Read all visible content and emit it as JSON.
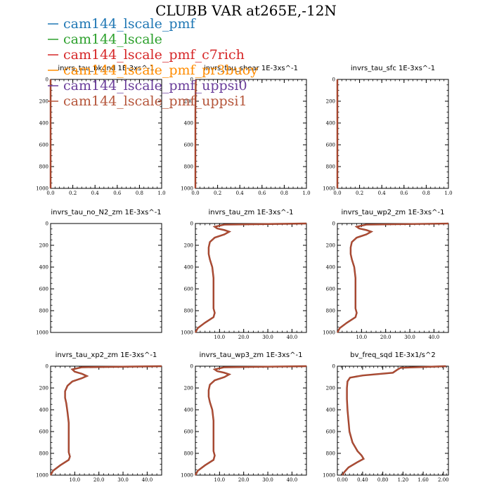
{
  "figure": {
    "title": "CLUBB VAR at265E,-12N"
  },
  "legend": [
    {
      "label": "cam144_lscale_pmf",
      "color": "#1f77b4"
    },
    {
      "label": "cam144_lscale",
      "color": "#2ca02c"
    },
    {
      "label": "cam144_lscale_pmf_c7rich",
      "color": "#d62728"
    },
    {
      "label": "cam144_lscale_pmf_pr3buoy",
      "color": "#ff8c00"
    },
    {
      "label": "cam144_lscale_pmf_uppsi0",
      "color": "#6a3d9a"
    },
    {
      "label": "cam144_lscale_pmf_uppsi1",
      "color": "#b5553a"
    }
  ],
  "chart_data": [
    {
      "type": "line",
      "title": "invrs_tau_bkgnd   1E-3xs^-1",
      "xlim": [
        0,
        1
      ],
      "ylim": [
        1000,
        0
      ],
      "xticks": [
        "0.0",
        "0.2",
        "0.4",
        "0.6",
        "0.8",
        "1.0"
      ],
      "yticks": [
        "0",
        "200",
        "400",
        "600",
        "800",
        "1000"
      ],
      "series": [
        {
          "x": [
            0,
            0,
            0,
            0,
            0,
            0,
            0,
            0
          ],
          "y": [
            0,
            15,
            150,
            300,
            500,
            700,
            900,
            1000
          ]
        }
      ]
    },
    {
      "type": "line",
      "title": "invrs_tau_shear   1E-3xs^-1",
      "xlim": [
        0,
        1
      ],
      "ylim": [
        1000,
        0
      ],
      "xticks": [
        "0.0",
        "0.2",
        "0.4",
        "0.6",
        "0.8",
        "1.0"
      ],
      "yticks": [
        "0",
        "200",
        "400",
        "600",
        "800",
        "1000"
      ],
      "series": [
        {
          "x": [
            0.006,
            0.003,
            0.001,
            0.0,
            0.0,
            0.0,
            0.0,
            0.0
          ],
          "y": [
            0,
            15,
            150,
            300,
            500,
            700,
            900,
            1000
          ]
        }
      ]
    },
    {
      "type": "line",
      "title": "invrs_tau_sfc   1E-3xs^-1",
      "xlim": [
        0,
        1
      ],
      "ylim": [
        1000,
        0
      ],
      "xticks": [
        "0.0",
        "0.2",
        "0.4",
        "0.6",
        "0.8",
        "1.0"
      ],
      "yticks": [
        "0",
        "200",
        "400",
        "600",
        "800",
        "1000"
      ],
      "series": [
        {
          "x": [
            0,
            0,
            0,
            0,
            0,
            0,
            0,
            0
          ],
          "y": [
            0,
            15,
            150,
            300,
            500,
            700,
            900,
            1000
          ]
        }
      ]
    },
    {
      "type": "line",
      "title": "invrs_tau_no_N2_zm   1E-3xs^-1",
      "xlim": [
        0,
        1
      ],
      "ylim": [
        1000,
        0
      ],
      "xticks": [],
      "yticks": [
        "0",
        "200",
        "400",
        "600",
        "800",
        "1000"
      ],
      "series": []
    },
    {
      "type": "line",
      "title": "invrs_tau_zm   1E-3xs^-1",
      "xlim": [
        0,
        46
      ],
      "ylim": [
        1000,
        0
      ],
      "xticks": [
        "10.0",
        "20.0",
        "30.0",
        "40.0"
      ],
      "yticks": [
        "0",
        "200",
        "400",
        "600",
        "800",
        "1000"
      ],
      "series": [
        {
          "x": [
            46,
            12,
            8,
            9,
            12,
            14,
            12,
            8,
            6,
            5.5,
            5.5,
            6,
            7,
            7.5,
            7.5,
            7.5,
            7.5,
            8,
            7.5,
            4,
            1,
            0
          ],
          "y": [
            0,
            10,
            30,
            45,
            60,
            75,
            100,
            130,
            170,
            220,
            280,
            330,
            400,
            500,
            600,
            700,
            780,
            820,
            860,
            910,
            960,
            1000
          ]
        }
      ]
    },
    {
      "type": "line",
      "title": "invrs_tau_wp2_zm   1E-3xs^-1",
      "xlim": [
        0,
        46
      ],
      "ylim": [
        1000,
        0
      ],
      "xticks": [
        "10.0",
        "20.0",
        "30.0",
        "40.0"
      ],
      "yticks": [
        "0",
        "200",
        "400",
        "600",
        "800",
        "1000"
      ],
      "series": [
        {
          "x": [
            46,
            12,
            8,
            9,
            12,
            14,
            12,
            8,
            6,
            5.5,
            5.5,
            6,
            7,
            7.5,
            7.5,
            7.5,
            7.5,
            8,
            7.5,
            4,
            1,
            0
          ],
          "y": [
            0,
            10,
            30,
            45,
            60,
            75,
            100,
            130,
            170,
            220,
            280,
            330,
            400,
            500,
            600,
            700,
            780,
            820,
            860,
            910,
            960,
            1000
          ]
        }
      ]
    },
    {
      "type": "line",
      "title": "invrs_tau_xp2_zm   1E-3xs^-1",
      "xlim": [
        0,
        46
      ],
      "ylim": [
        1000,
        0
      ],
      "xticks": [
        "10.0",
        "20.0",
        "30.0",
        "40.0"
      ],
      "yticks": [
        "0",
        "200",
        "400",
        "600",
        "800",
        "1000"
      ],
      "series": [
        {
          "x": [
            46,
            13,
            9,
            10,
            13,
            15,
            13,
            9,
            7,
            6,
            6,
            6.5,
            7,
            7.5,
            7.5,
            7.5,
            7.5,
            8,
            7.5,
            4,
            1,
            0
          ],
          "y": [
            0,
            10,
            30,
            50,
            70,
            90,
            110,
            140,
            180,
            230,
            290,
            340,
            420,
            520,
            620,
            720,
            790,
            830,
            860,
            910,
            960,
            1000
          ]
        }
      ]
    },
    {
      "type": "line",
      "title": "invrs_tau_wp3_zm   1E-3xs^-1",
      "xlim": [
        0,
        46
      ],
      "ylim": [
        1000,
        0
      ],
      "xticks": [
        "10.0",
        "20.0",
        "30.0",
        "40.0"
      ],
      "yticks": [
        "0",
        "200",
        "400",
        "600",
        "800",
        "1000"
      ],
      "series": [
        {
          "x": [
            46,
            12,
            8,
            9,
            12,
            14,
            12,
            8,
            6,
            5.5,
            5.5,
            6,
            7,
            7.5,
            7.5,
            7.5,
            7.5,
            8,
            7.5,
            4,
            1,
            0
          ],
          "y": [
            0,
            10,
            30,
            45,
            60,
            75,
            100,
            130,
            170,
            220,
            280,
            330,
            400,
            500,
            600,
            700,
            780,
            820,
            860,
            910,
            960,
            1000
          ]
        }
      ]
    },
    {
      "type": "line",
      "title": "bv_freq_sqd   1E-3x1/s^2",
      "xlim": [
        -0.1,
        2.1
      ],
      "ylim": [
        1000,
        0
      ],
      "xticks": [
        "0.00",
        "0.40",
        "0.80",
        "1.20",
        "1.60",
        "2.00"
      ],
      "yticks": [
        "0",
        "200",
        "400",
        "600",
        "800",
        "1000"
      ],
      "series": [
        {
          "x": [
            2.05,
            1.15,
            1.08,
            1.0,
            0.4,
            0.15,
            0.1,
            0.09,
            0.09,
            0.1,
            0.12,
            0.14,
            0.2,
            0.3,
            0.38,
            0.42,
            0.3,
            0.12,
            0.04,
            0.0
          ],
          "y": [
            0,
            15,
            35,
            60,
            85,
            105,
            140,
            200,
            300,
            400,
            500,
            600,
            700,
            780,
            820,
            850,
            880,
            930,
            970,
            1000
          ]
        }
      ]
    }
  ]
}
